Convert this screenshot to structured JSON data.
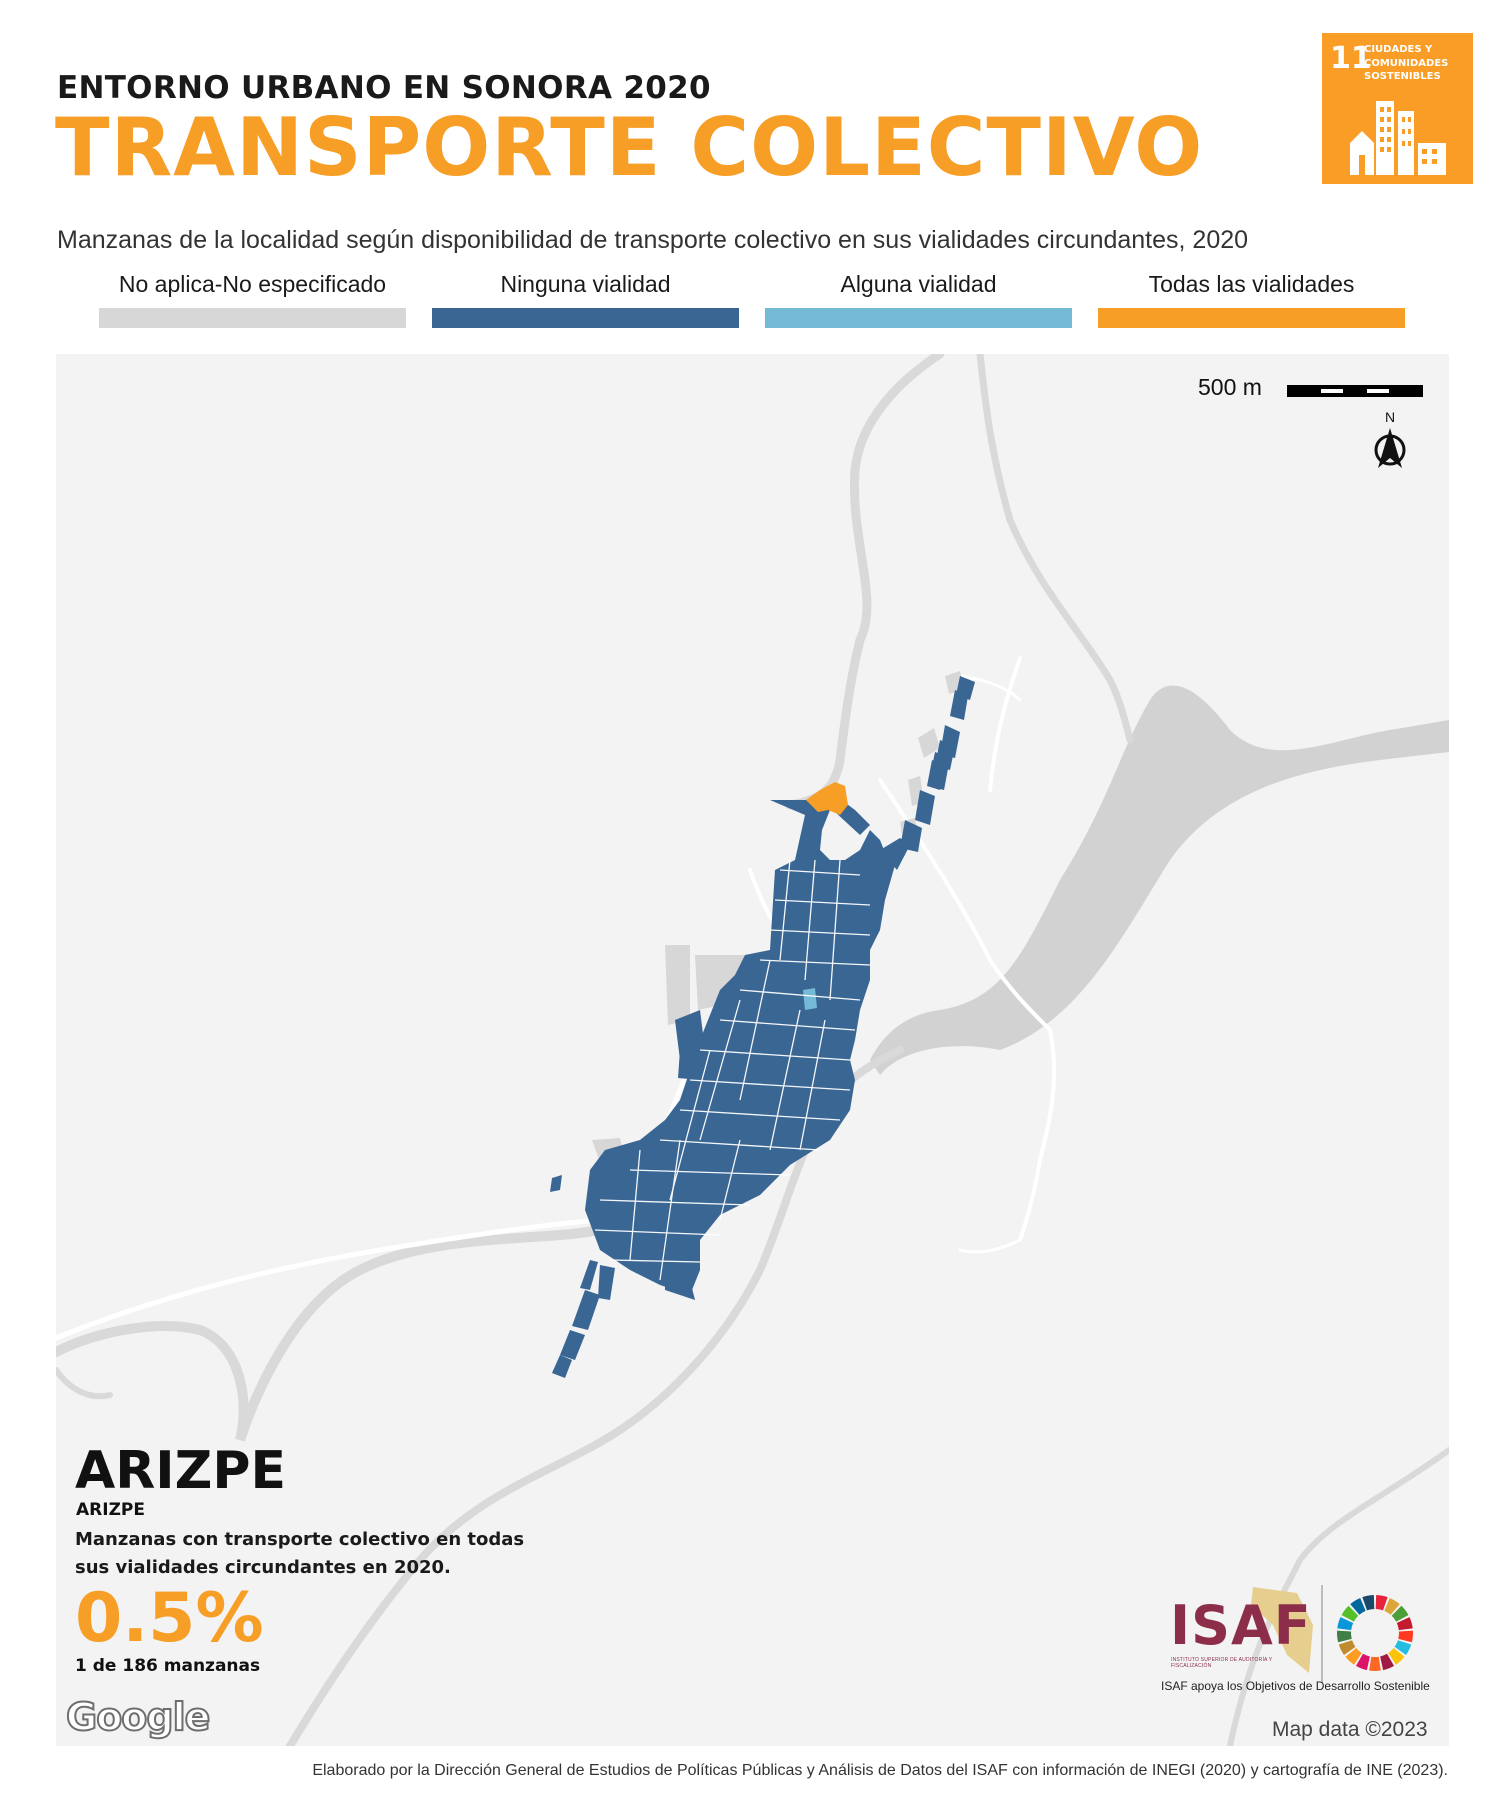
{
  "header": {
    "supertitle": "ENTORNO URBANO EN SONORA 2020",
    "title": "TRANSPORTE COLECTIVO",
    "subtitle": "Manzanas de la localidad según disponibilidad de  transporte colectivo en sus vialidades circundantes, 2020"
  },
  "sdg_badge": {
    "number": "11",
    "label": "CIUDADES Y COMUNIDADES SOSTENIBLES",
    "color": "#f99d26"
  },
  "legend": [
    {
      "label": "No aplica-No especificado",
      "color": "#d7d7d7"
    },
    {
      "label": "Ninguna vialidad",
      "color": "#3a6694"
    },
    {
      "label": "Alguna vialidad",
      "color": "#74bad6"
    },
    {
      "label": "Todas las vialidades",
      "color": "#f79e26"
    }
  ],
  "map": {
    "scale_label": "500 m",
    "north_label": "N",
    "attribution_logo": "Google",
    "map_data": "Map data ©2023"
  },
  "locality": {
    "municipality": "ARIZPE",
    "locality": "ARIZPE",
    "description": "Manzanas con transporte colectivo en todas sus vialidades circundantes en 2020.",
    "percentage": "0.5%",
    "count_text": "1 de 186 manzanas"
  },
  "isaf": {
    "logo_text": "ISAF",
    "logo_subtext": "INSTITUTO SUPERIOR DE AUDITORÍA Y FISCALIZACIÓN",
    "caption": "ISAF apoya los Objetivos de Desarrollo Sostenible"
  },
  "footer": {
    "credit": "Elaborado por la Dirección General de Estudios de Políticas Públicas y Análisis de Datos del ISAF con información de INEGI (2020) y cartografía de INE (2023)."
  }
}
